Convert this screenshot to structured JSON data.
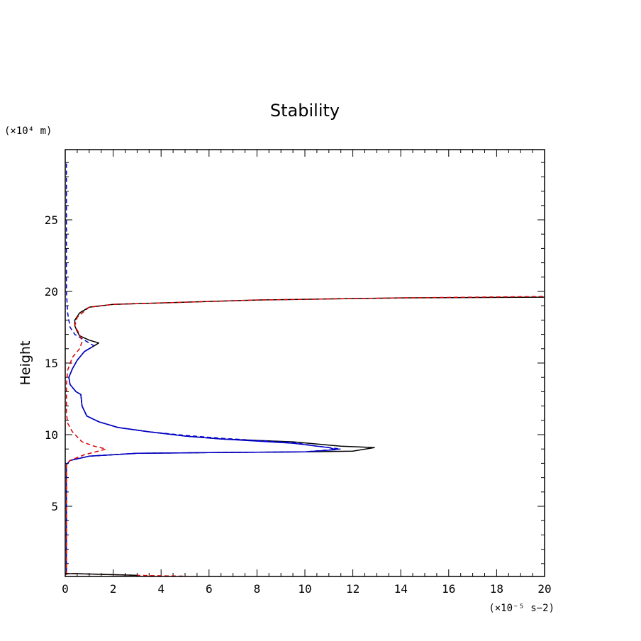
{
  "chart_data": {
    "type": "line",
    "title": "Stability",
    "xlabel": "",
    "ylabel": "Height",
    "x_unit_label": "(×10⁻⁵ s−2)",
    "y_unit_label": "(×10⁴ m)",
    "xlim": [
      0,
      20
    ],
    "ylim": [
      0.1,
      29.9
    ],
    "x_ticks": [
      "0",
      "2",
      "4",
      "6",
      "8",
      "10",
      "12",
      "14",
      "16",
      "18",
      "20"
    ],
    "y_ticks": [
      "5",
      "10",
      "15",
      "20",
      "25"
    ],
    "grid": false,
    "legend": "none",
    "series": [
      {
        "color": "#000000",
        "dash": "solid",
        "points": [
          [
            0.05,
            0.2
          ],
          [
            0.05,
            7.9
          ],
          [
            0.2,
            8.2
          ],
          [
            1.0,
            8.5
          ],
          [
            3.0,
            8.7
          ],
          [
            6.0,
            8.75
          ],
          [
            10.0,
            8.8
          ],
          [
            12.0,
            8.85
          ],
          [
            12.9,
            9.1
          ],
          [
            11.5,
            9.2
          ],
          [
            9.5,
            9.5
          ],
          [
            6.5,
            9.7
          ],
          [
            5.0,
            9.9
          ],
          [
            3.5,
            10.2
          ],
          [
            2.2,
            10.5
          ],
          [
            1.4,
            10.9
          ],
          [
            0.9,
            11.3
          ],
          [
            0.7,
            12.0
          ],
          [
            0.65,
            12.8
          ],
          [
            0.45,
            13.0
          ],
          [
            0.2,
            13.5
          ],
          [
            0.15,
            14.0
          ],
          [
            0.3,
            14.6
          ],
          [
            0.5,
            15.2
          ],
          [
            0.8,
            15.8
          ],
          [
            1.2,
            16.2
          ],
          [
            1.4,
            16.4
          ],
          [
            1.0,
            16.6
          ],
          [
            0.6,
            16.9
          ],
          [
            0.5,
            17.2
          ],
          [
            0.4,
            17.6
          ],
          [
            0.4,
            18.0
          ],
          [
            0.6,
            18.5
          ],
          [
            1.0,
            18.9
          ],
          [
            2.0,
            19.1
          ],
          [
            4.0,
            19.2
          ],
          [
            8.0,
            19.4
          ],
          [
            14.0,
            19.55
          ],
          [
            20.0,
            19.6
          ]
        ]
      },
      {
        "color": "#0000cc",
        "dash": "solid",
        "points": [
          [
            0.05,
            0.2
          ],
          [
            0.05,
            7.9
          ],
          [
            0.2,
            8.2
          ],
          [
            1.0,
            8.5
          ],
          [
            3.0,
            8.7
          ],
          [
            6.0,
            8.75
          ],
          [
            10.0,
            8.8
          ],
          [
            11.3,
            8.95
          ],
          [
            11.0,
            9.1
          ],
          [
            9.5,
            9.4
          ],
          [
            6.5,
            9.7
          ],
          [
            5.0,
            9.9
          ],
          [
            3.5,
            10.2
          ],
          [
            2.2,
            10.5
          ],
          [
            1.4,
            10.9
          ],
          [
            0.9,
            11.3
          ],
          [
            0.7,
            12.0
          ],
          [
            0.65,
            12.8
          ],
          [
            0.45,
            13.0
          ],
          [
            0.2,
            13.5
          ],
          [
            0.15,
            14.0
          ],
          [
            0.3,
            14.6
          ],
          [
            0.5,
            15.2
          ],
          [
            0.8,
            15.8
          ],
          [
            1.1,
            16.1
          ]
        ]
      },
      {
        "color": "#0000cc",
        "dash": "dashed",
        "points": [
          [
            0.05,
            0.2
          ],
          [
            0.05,
            7.9
          ],
          [
            0.2,
            8.2
          ],
          [
            1.0,
            8.5
          ],
          [
            3.0,
            8.7
          ],
          [
            6.0,
            8.75
          ],
          [
            10.0,
            8.8
          ],
          [
            11.5,
            9.0
          ],
          [
            10.5,
            9.2
          ],
          [
            9.5,
            9.45
          ],
          [
            6.5,
            9.75
          ],
          [
            5.0,
            9.95
          ],
          [
            3.5,
            10.2
          ],
          [
            2.2,
            10.5
          ],
          [
            1.4,
            10.9
          ],
          [
            0.9,
            11.3
          ],
          [
            0.7,
            12.0
          ],
          [
            0.65,
            12.8
          ],
          [
            0.45,
            13.0
          ],
          [
            0.2,
            13.5
          ],
          [
            0.15,
            14.0
          ],
          [
            0.3,
            14.6
          ],
          [
            0.5,
            15.2
          ],
          [
            0.8,
            15.8
          ],
          [
            1.2,
            16.2
          ],
          [
            0.9,
            16.5
          ],
          [
            0.6,
            16.8
          ],
          [
            0.4,
            17.0
          ],
          [
            0.2,
            17.5
          ],
          [
            0.1,
            18.5
          ],
          [
            0.05,
            20.0
          ],
          [
            0.05,
            25.0
          ],
          [
            0.05,
            29.0
          ]
        ]
      },
      {
        "color": "#dd0000",
        "dash": "dashed",
        "points": [
          [
            0.05,
            0.2
          ],
          [
            0.05,
            7.9
          ],
          [
            0.2,
            8.2
          ],
          [
            0.8,
            8.6
          ],
          [
            1.5,
            8.9
          ],
          [
            1.7,
            9.0
          ],
          [
            1.2,
            9.2
          ],
          [
            0.7,
            9.5
          ],
          [
            0.3,
            10.2
          ],
          [
            0.1,
            10.8
          ],
          [
            0.05,
            11.5
          ],
          [
            0.05,
            13.5
          ],
          [
            0.1,
            14.5
          ],
          [
            0.3,
            15.4
          ],
          [
            0.6,
            16.0
          ],
          [
            0.7,
            16.5
          ],
          [
            0.6,
            17.0
          ],
          [
            0.4,
            17.6
          ],
          [
            0.5,
            18.2
          ],
          [
            1.0,
            18.9
          ],
          [
            2.0,
            19.1
          ],
          [
            4.0,
            19.2
          ],
          [
            8.0,
            19.4
          ],
          [
            14.0,
            19.55
          ],
          [
            20.0,
            19.65
          ]
        ]
      },
      {
        "color": "#dd0000",
        "dash": "dashed",
        "points": [
          [
            0.0,
            0.3
          ],
          [
            0.4,
            0.3
          ],
          [
            1.0,
            0.27
          ],
          [
            2.0,
            0.23
          ],
          [
            3.0,
            0.18
          ],
          [
            4.0,
            0.15
          ],
          [
            5.0,
            0.12
          ]
        ]
      },
      {
        "color": "#000000",
        "dash": "solid",
        "points": [
          [
            0.0,
            0.3
          ],
          [
            0.5,
            0.3
          ],
          [
            1.5,
            0.25
          ],
          [
            3.0,
            0.18
          ]
        ]
      }
    ]
  }
}
